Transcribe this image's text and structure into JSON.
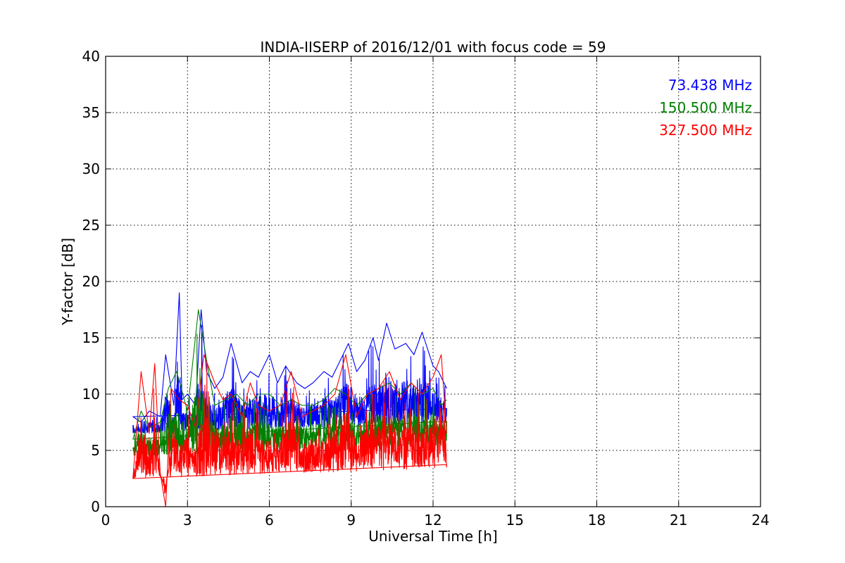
{
  "chart_data": {
    "type": "line",
    "title": "INDIA-IISERP of 2016/12/01 with focus code = 59",
    "xlabel": "Universal Time [h]",
    "ylabel": "Y-factor [dB]",
    "xlim": [
      0,
      24
    ],
    "ylim": [
      0,
      40
    ],
    "xticks": [
      0,
      3,
      6,
      9,
      15,
      18,
      21,
      24
    ],
    "xtick_labels": [
      "0",
      "3",
      "6",
      "9",
      "15",
      "18",
      "21",
      "24"
    ],
    "xtick_positions_data": [
      0,
      3,
      6,
      9,
      12,
      15,
      18,
      21,
      24
    ],
    "xtick_labels_full": [
      "0",
      "3",
      "6",
      "9",
      "12",
      "15",
      "18",
      "21",
      "24"
    ],
    "yticks": [
      0,
      5,
      10,
      15,
      20,
      25,
      30,
      35,
      40
    ],
    "ytick_labels": [
      "0",
      "5",
      "10",
      "15",
      "20",
      "25",
      "30",
      "35",
      "40"
    ],
    "grid": true,
    "legend_placement": "top-right",
    "series": [
      {
        "name": "73.438 MHz",
        "color": "#0000ff",
        "x": [
          1.0,
          1.3,
          1.6,
          2.0,
          2.2,
          2.5,
          2.7,
          2.8,
          3.0,
          3.3,
          3.5,
          3.7,
          4.0,
          4.3,
          4.6,
          5.0,
          5.3,
          5.6,
          6.0,
          6.3,
          6.6,
          7.0,
          7.3,
          7.6,
          8.0,
          8.3,
          8.6,
          8.9,
          9.2,
          9.5,
          9.8,
          10.0,
          10.3,
          10.6,
          11.0,
          11.3,
          11.6,
          12.0,
          12.2,
          12.5
        ],
        "y": [
          8.0,
          7.5,
          8.5,
          8.0,
          13.5,
          9.0,
          19.0,
          9.5,
          10.0,
          9.0,
          17.5,
          12.0,
          10.5,
          11.5,
          14.5,
          11.0,
          12.0,
          11.5,
          13.5,
          11.0,
          12.5,
          11.0,
          10.5,
          11.0,
          12.0,
          11.5,
          13.0,
          14.5,
          12.0,
          13.0,
          15.0,
          13.0,
          16.3,
          14.0,
          14.5,
          13.5,
          15.5,
          12.5,
          12.0,
          10.5
        ]
      },
      {
        "name": "150.500 MHz",
        "color": "#008000",
        "x": [
          1.0,
          1.3,
          1.6,
          2.0,
          2.3,
          2.6,
          3.0,
          3.4,
          3.7,
          4.0,
          4.4,
          4.8,
          5.2,
          5.6,
          6.0,
          6.4,
          6.8,
          7.2,
          7.6,
          8.0,
          8.4,
          8.8,
          9.2,
          9.6,
          10.0,
          10.4,
          10.8,
          11.2,
          11.6,
          12.0,
          12.3,
          12.5
        ],
        "y": [
          6.0,
          8.5,
          7.0,
          7.5,
          10.5,
          12.0,
          8.5,
          17.5,
          13.0,
          9.0,
          9.5,
          10.0,
          9.0,
          10.0,
          10.0,
          9.0,
          9.5,
          9.0,
          9.0,
          9.5,
          10.5,
          10.0,
          9.0,
          10.0,
          10.5,
          11.0,
          10.0,
          11.0,
          10.0,
          10.5,
          9.0,
          9.5
        ]
      },
      {
        "name": "327.500 MHz",
        "color": "#ff0000",
        "x": [
          1.0,
          1.3,
          1.6,
          1.8,
          2.0,
          2.2,
          2.4,
          2.7,
          3.0,
          3.3,
          3.6,
          4.0,
          4.3,
          4.6,
          5.0,
          5.3,
          5.6,
          6.0,
          6.4,
          6.8,
          7.2,
          7.6,
          8.0,
          8.4,
          8.8,
          9.2,
          9.6,
          10.0,
          10.4,
          10.8,
          11.2,
          11.6,
          12.0,
          12.3,
          12.5
        ],
        "y": [
          2.5,
          12.0,
          6.5,
          12.7,
          3.0,
          0.0,
          10.5,
          9.5,
          9.0,
          7.0,
          13.5,
          11.0,
          9.5,
          10.0,
          8.0,
          11.0,
          9.0,
          8.5,
          9.0,
          12.0,
          8.0,
          8.5,
          9.0,
          10.0,
          13.5,
          8.0,
          10.0,
          10.5,
          12.0,
          9.5,
          11.0,
          10.0,
          11.5,
          13.5,
          6.5
        ]
      }
    ]
  }
}
